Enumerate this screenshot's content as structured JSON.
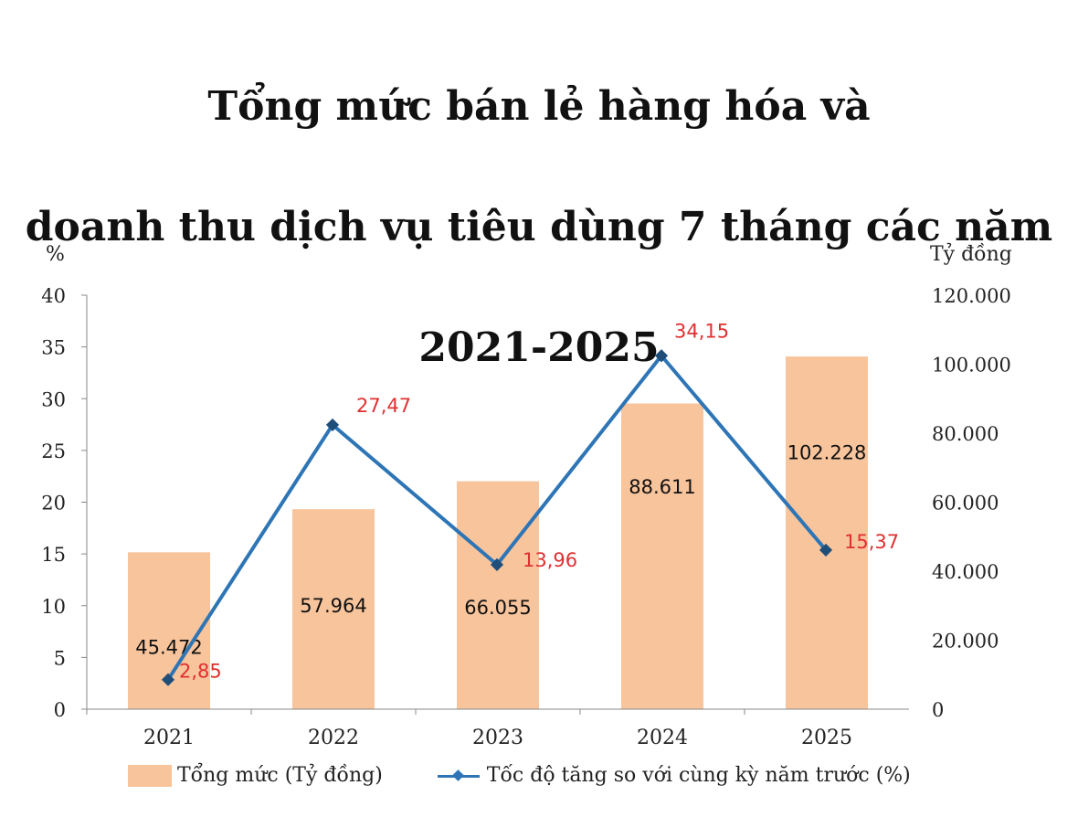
{
  "title_lines": [
    "Tổng mức bán lẻ hàng hóa và",
    "doanh thu dịch vụ tiêu dùng 7 tháng các năm",
    "2021-2025"
  ],
  "chart_data": {
    "type": "bar+line",
    "categories": [
      "2021",
      "2022",
      "2023",
      "2024",
      "2025"
    ],
    "left_axis": {
      "unit": "%",
      "ylim": [
        0,
        40
      ],
      "ticks": [
        "0",
        "5",
        "10",
        "15",
        "20",
        "25",
        "30",
        "35",
        "40"
      ]
    },
    "right_axis": {
      "unit": "Tỷ đồng",
      "ylim": [
        0,
        120000
      ],
      "ticks": [
        "0",
        "20.000",
        "40.000",
        "60.000",
        "80.000",
        "100.000",
        "120.000"
      ]
    },
    "series": [
      {
        "name": "Tổng mức (Tỷ đồng)",
        "type": "bar",
        "axis": "right",
        "color": "#f8c49c",
        "values": [
          45472,
          57964,
          66055,
          88611,
          102228
        ],
        "labels": [
          "45.472",
          "57.964",
          "66.055",
          "88.611",
          "102.228"
        ]
      },
      {
        "name": "Tốc độ tăng so với cùng kỳ năm trước (%)",
        "type": "line",
        "axis": "left",
        "color": "#2e75b6",
        "label_color": "#e03030",
        "values": [
          2.85,
          27.47,
          13.96,
          34.15,
          15.37
        ],
        "labels": [
          "2,85",
          "27,47",
          "13,96",
          "34,15",
          "15,37"
        ]
      }
    ],
    "grid": false,
    "legend_position": "bottom"
  }
}
